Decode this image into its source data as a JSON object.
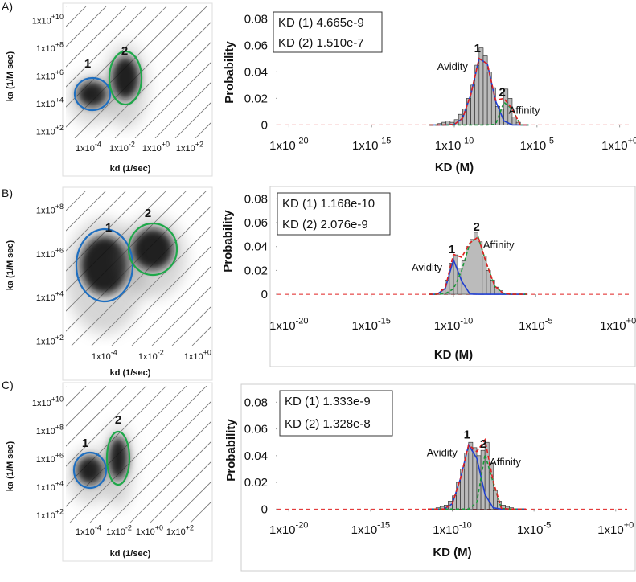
{
  "chart_data": [
    {
      "type": "scatter",
      "panel_label": "A)",
      "xlabel": "kd (1/sec)",
      "ylabel": "ka (1/M sec)",
      "xlim": [
        -5.33,
        3.24
      ],
      "ylim": [
        1.5,
        11
      ],
      "xticks": [
        {
          "value": -4,
          "label": "1x10",
          "exponent": "-4"
        },
        {
          "value": -2,
          "label": "1x10",
          "exponent": "-2"
        },
        {
          "value": 0,
          "label": "1x10",
          "exponent": "+0"
        },
        {
          "value": 2,
          "label": "1x10",
          "exponent": "+2"
        }
      ],
      "yticks": [
        {
          "value": 10,
          "label": "1x10",
          "exponent": "+10"
        },
        {
          "value": 8,
          "label": "1x10",
          "exponent": "+8"
        },
        {
          "value": 6,
          "label": "1x10",
          "exponent": "+6"
        },
        {
          "value": 4,
          "label": "1x10",
          "exponent": "+4"
        },
        {
          "value": 2,
          "label": "1x10",
          "exponent": "+2"
        }
      ],
      "clusters": [
        {
          "label": "1",
          "color": "#1f6fc0"
        },
        {
          "label": "2",
          "color": "#1fa84a"
        }
      ]
    },
    {
      "type": "histogram",
      "kd_labels": [
        "KD (1) 4.665e-9",
        "KD (2) 1.510e-7"
      ],
      "xlabel": "KD (M)",
      "ylabel": "Probability",
      "xlim": [
        -20.7,
        0.7
      ],
      "ylim": [
        -0.004,
        0.085
      ],
      "xticks": [
        {
          "value": -20,
          "label": "1x10",
          "exponent": "-20"
        },
        {
          "value": -15,
          "label": "1x10",
          "exponent": "-15"
        },
        {
          "value": -10,
          "label": "1x10",
          "exponent": "-10"
        },
        {
          "value": -5,
          "label": "1x10",
          "exponent": "-5"
        },
        {
          "value": 0,
          "label": "1x10",
          "exponent": "+0"
        }
      ],
      "yticks": [
        0,
        0.02,
        0.04,
        0.06,
        0.08
      ],
      "bins": [
        -11,
        -10.75,
        -10.5,
        -10.25,
        -10,
        -9.75,
        -9.5,
        -9.25,
        -9,
        -8.75,
        -8.5,
        -8.25,
        -8,
        -7.75,
        -7.5,
        -7.25,
        -7,
        -6.75,
        -6.5,
        -6.25,
        -6
      ],
      "counts": [
        0.001,
        0.002,
        0.003,
        0.002,
        0.004,
        0.008,
        0.012,
        0.02,
        0.03,
        0.045,
        0.058,
        0.052,
        0.04,
        0.028,
        0.014,
        0.012,
        0.027,
        0.02,
        0.006,
        0.002
      ],
      "curve_x": [
        -11.5,
        -11,
        -10.5,
        -10,
        -9.5,
        -9,
        -8.5,
        -8,
        -7.5,
        -7,
        -6.5,
        -6,
        -5.5
      ],
      "series": [
        {
          "name": "Avidity",
          "color": "#1f3fd0",
          "values": [
            0,
            0,
            0,
            0.0004,
            0.005,
            0.023,
            0.05,
            0.046,
            0.018,
            0.003,
            0,
            0,
            0
          ]
        },
        {
          "name": "Affinity",
          "color": "#1a9a3a",
          "values": [
            0,
            0,
            0,
            0,
            0,
            0,
            0,
            0,
            0.0005,
            0.017,
            0.012,
            0,
            0
          ]
        },
        {
          "color": "#e02020",
          "values": [
            0,
            0,
            0,
            0.0004,
            0.005,
            0.023,
            0.05,
            0.046,
            0.0185,
            0.02,
            0.012,
            0,
            0
          ]
        }
      ],
      "annotations": [
        "1",
        "2"
      ]
    },
    {
      "type": "scatter",
      "panel_label": "B)",
      "xlabel": "kd (1/sec)",
      "ylabel": "ka (1/M sec)",
      "xlim": [
        -5.65,
        0.56
      ],
      "ylim": [
        1.8,
        8.9
      ],
      "xticks": [
        {
          "value": -4,
          "label": "1x10",
          "exponent": "-4"
        },
        {
          "value": -2,
          "label": "1x10",
          "exponent": "-2"
        },
        {
          "value": 0,
          "label": "1x10",
          "exponent": "+0"
        }
      ],
      "yticks": [
        {
          "value": 8,
          "label": "1x10",
          "exponent": "+8"
        },
        {
          "value": 6,
          "label": "1x10",
          "exponent": "+6"
        },
        {
          "value": 4,
          "label": "1x10",
          "exponent": "+4"
        },
        {
          "value": 2,
          "label": "1x10",
          "exponent": "+2"
        }
      ],
      "clusters": [
        {
          "label": "1",
          "color": "#1f6fc0"
        },
        {
          "label": "2",
          "color": "#1fa84a"
        }
      ]
    },
    {
      "type": "histogram",
      "kd_labels": [
        "KD (1) 1.168e-10",
        "KD (2) 2.076e-9"
      ],
      "xlabel": "KD (M)",
      "ylabel": "Probability",
      "xlim": [
        -20.7,
        0.7
      ],
      "ylim": [
        -0.004,
        0.085
      ],
      "xticks": [
        {
          "value": -20,
          "label": "1x10",
          "exponent": "-20"
        },
        {
          "value": -15,
          "label": "1x10",
          "exponent": "-15"
        },
        {
          "value": -10,
          "label": "1x10",
          "exponent": "-10"
        },
        {
          "value": -5,
          "label": "1x10",
          "exponent": "-5"
        },
        {
          "value": 0,
          "label": "1x10",
          "exponent": "+0"
        }
      ],
      "yticks": [
        0,
        0.02,
        0.04,
        0.06,
        0.08
      ],
      "bins": [
        -11,
        -10.75,
        -10.5,
        -10.25,
        -10,
        -9.75,
        -9.5,
        -9.25,
        -9,
        -8.75,
        -8.5,
        -8.25,
        -8,
        -7.75,
        -7.5,
        -7.25,
        -7,
        -6.75,
        -6.5,
        -6.25,
        -6
      ],
      "counts": [
        0.001,
        0.004,
        0.012,
        0.026,
        0.033,
        0.022,
        0.028,
        0.04,
        0.046,
        0.052,
        0.044,
        0.032,
        0.02,
        0.012,
        0.006,
        0.003,
        0.001,
        0.001,
        0,
        0
      ],
      "curve_x": [
        -11.5,
        -11,
        -10.5,
        -10,
        -9.5,
        -9,
        -8.5,
        -8,
        -7.5,
        -7,
        -6.5,
        -6,
        -5.5
      ],
      "series": [
        {
          "name": "Avidity",
          "color": "#1f3fd0",
          "values": [
            0,
            0,
            0.005,
            0.029,
            0.011,
            0.0002,
            0,
            0,
            0,
            0,
            0,
            0,
            0
          ]
        },
        {
          "name": "Affinity",
          "color": "#1a9a3a",
          "values": [
            0,
            0,
            0.0005,
            0.0045,
            0.02,
            0.043,
            0.048,
            0.026,
            0.007,
            0.001,
            0,
            0,
            0
          ]
        },
        {
          "color": "#e02020",
          "values": [
            0,
            0,
            0.0055,
            0.0335,
            0.031,
            0.0432,
            0.048,
            0.026,
            0.007,
            0.001,
            0,
            0,
            0
          ]
        }
      ],
      "annotations": [
        "1",
        "2"
      ]
    },
    {
      "type": "scatter",
      "panel_label": "C)",
      "xlabel": "kd (1/sec)",
      "ylabel": "ka (1/M sec)",
      "xlim": [
        -5.47,
        4.0
      ],
      "ylim": [
        1.5,
        11.2
      ],
      "xticks": [
        {
          "value": -4,
          "label": "1x10",
          "exponent": "-4"
        },
        {
          "value": -2,
          "label": "1x10",
          "exponent": "-2"
        },
        {
          "value": 0,
          "label": "1x10",
          "exponent": "+0"
        },
        {
          "value": 2,
          "label": "1x10",
          "exponent": "+2"
        }
      ],
      "yticks": [
        {
          "value": 10,
          "label": "1x10",
          "exponent": "+10"
        },
        {
          "value": 8,
          "label": "1x10",
          "exponent": "+8"
        },
        {
          "value": 6,
          "label": "1x10",
          "exponent": "+6"
        },
        {
          "value": 4,
          "label": "1x10",
          "exponent": "+4"
        },
        {
          "value": 2,
          "label": "1x10",
          "exponent": "+2"
        }
      ],
      "clusters": [
        {
          "label": "1",
          "color": "#1f6fc0"
        },
        {
          "label": "2",
          "color": "#1fa84a"
        }
      ]
    },
    {
      "type": "histogram",
      "kd_labels": [
        "KD (1) 1.333e-9",
        "KD (2) 1.328e-8"
      ],
      "xlabel": "KD (M)",
      "ylabel": "Probability",
      "xlim": [
        -20.7,
        0.7
      ],
      "ylim": [
        -0.004,
        0.085
      ],
      "xticks": [
        {
          "value": -20,
          "label": "1x10",
          "exponent": "-20"
        },
        {
          "value": -15,
          "label": "1x10",
          "exponent": "-15"
        },
        {
          "value": -10,
          "label": "1x10",
          "exponent": "-10"
        },
        {
          "value": -5,
          "label": "1x10",
          "exponent": "-5"
        },
        {
          "value": 0,
          "label": "1x10",
          "exponent": "+0"
        }
      ],
      "yticks": [
        0,
        0.02,
        0.04,
        0.06,
        0.08
      ],
      "bins": [
        -11,
        -10.75,
        -10.5,
        -10.25,
        -10,
        -9.75,
        -9.5,
        -9.25,
        -9,
        -8.75,
        -8.5,
        -8.25,
        -8,
        -7.75,
        -7.5,
        -7.25,
        -7,
        -6.75,
        -6.5,
        -6.25,
        -6
      ],
      "counts": [
        0.001,
        0.002,
        0.003,
        0.006,
        0.01,
        0.02,
        0.03,
        0.042,
        0.05,
        0.046,
        0.04,
        0.044,
        0.05,
        0.034,
        0.014,
        0.006,
        0.003,
        0.002,
        0.001,
        0
      ],
      "curve_x": [
        -11.5,
        -11,
        -10.5,
        -10,
        -9.5,
        -9,
        -8.5,
        -8,
        -7.5,
        -7,
        -6.5,
        -6,
        -5.5
      ],
      "series": [
        {
          "name": "Avidity",
          "color": "#1f3fd0",
          "values": [
            0,
            0,
            0,
            0.004,
            0.023,
            0.048,
            0.038,
            0.011,
            0.001,
            0,
            0,
            0,
            0
          ]
        },
        {
          "name": "Affinity",
          "color": "#1a9a3a",
          "values": [
            0,
            0,
            0,
            0,
            0,
            0,
            0.005,
            0.041,
            0.02,
            0.0006,
            0,
            0,
            0
          ]
        },
        {
          "color": "#e02020",
          "values": [
            0,
            0,
            0,
            0.004,
            0.023,
            0.048,
            0.043,
            0.052,
            0.021,
            0.0006,
            0,
            0,
            0
          ]
        }
      ],
      "annotations": [
        "1",
        "2"
      ]
    }
  ]
}
